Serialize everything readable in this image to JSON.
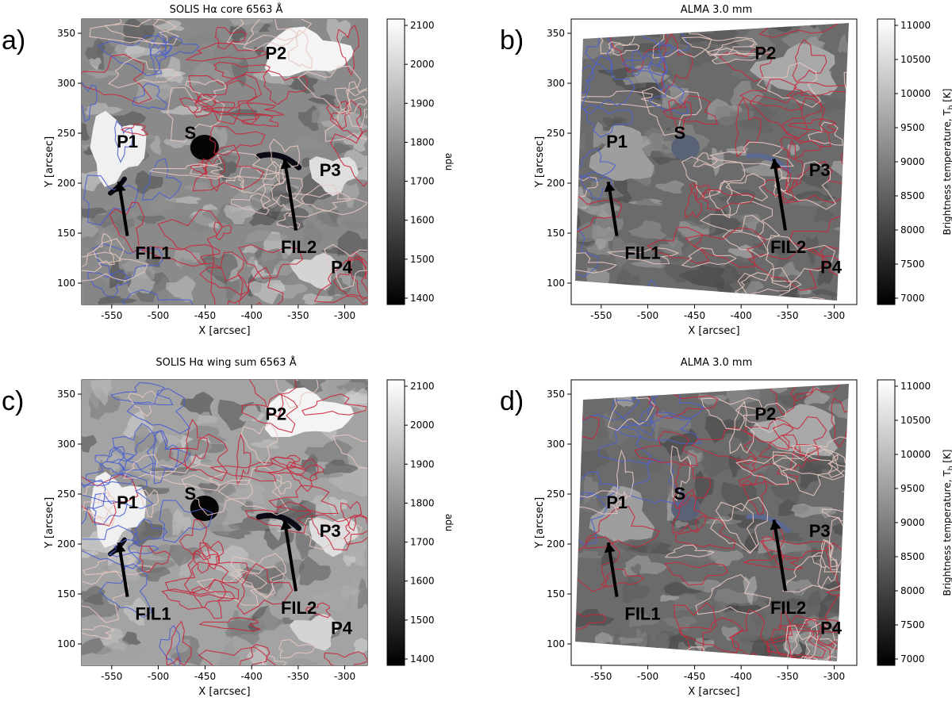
{
  "panels": [
    {
      "letter": "a)",
      "title": "SOLIS Hα core  6563 Å",
      "image_type": "solis",
      "cbar_label": "adu",
      "cbar_ticks": [
        "2100",
        "2000",
        "1900",
        "1800",
        "1700",
        "1600",
        "1500",
        "1400"
      ],
      "labels": [
        "P2",
        "P1",
        "S",
        "P3",
        "FIL2",
        "FIL1",
        "P4"
      ]
    },
    {
      "letter": "b)",
      "title": "ALMA 3.0 mm",
      "image_type": "alma",
      "cbar_label": "Brightness temperature, Tb [K]",
      "cbar_ticks": [
        "11000",
        "10500",
        "10000",
        "9500",
        "9000",
        "8500",
        "8000",
        "7500",
        "7000"
      ],
      "labels": [
        "P2",
        "P1",
        "S",
        "P3",
        "FIL2",
        "FIL1",
        "P4"
      ]
    },
    {
      "letter": "c)",
      "title": "SOLIS Hα wing sum  6563 Å",
      "image_type": "solis",
      "cbar_label": "adu",
      "cbar_ticks": [
        "2100",
        "2000",
        "1900",
        "1800",
        "1700",
        "1600",
        "1500",
        "1400"
      ],
      "labels": [
        "P2",
        "P1",
        "S",
        "P3",
        "FIL2",
        "FIL1",
        "P4"
      ]
    },
    {
      "letter": "d)",
      "title": "ALMA 3.0 mm",
      "image_type": "alma",
      "cbar_label": "Brightness temperature, Tb [K]",
      "cbar_ticks": [
        "11000",
        "10500",
        "10000",
        "9500",
        "9000",
        "8500",
        "8000",
        "7500",
        "7000"
      ],
      "labels": [
        "P2",
        "P1",
        "S",
        "P3",
        "FIL2",
        "FIL1",
        "P4"
      ]
    }
  ],
  "axes": {
    "x_label": "X [arcsec]",
    "y_label": "Y [arcsec]",
    "x_ticks": [
      "-550",
      "-500",
      "-450",
      "-400",
      "-350",
      "-300"
    ],
    "y_ticks": [
      "350",
      "300",
      "250",
      "200",
      "150",
      "100"
    ]
  },
  "colors": {
    "contour_red": "#c8283c",
    "contour_blue": "#4a5fd0",
    "contour_light": "#e7c7c0"
  }
}
